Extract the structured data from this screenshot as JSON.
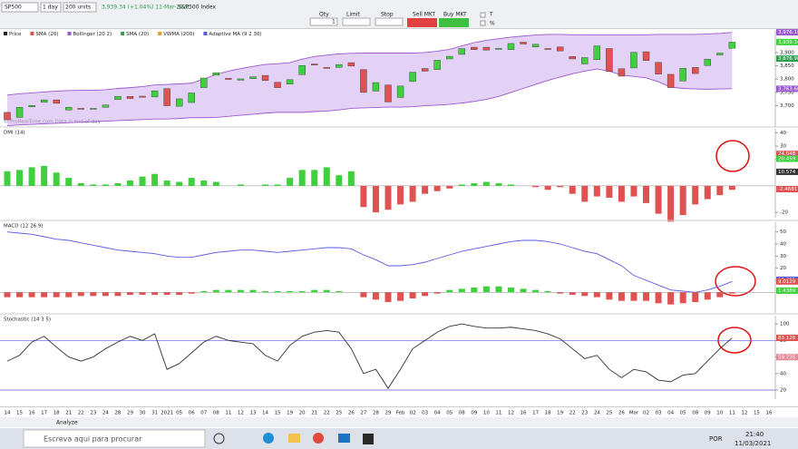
{
  "toolbar": {
    "symbol": "SP500",
    "period": "1 day",
    "units": "200 units",
    "quote": "3,939.34 (+1.04%) 11-Mar-2021",
    "name": "S&P500 Index",
    "qty_label": "Qty",
    "qty": "1",
    "limit": "Limit",
    "stop": "Stop",
    "sell": "Sell MKT",
    "buy": "Buy MKT",
    "t": "T",
    "pct": "%"
  },
  "legend": [
    "Price",
    "SMA (20)",
    "Bollinger (20 2)",
    "SMA (20)",
    "VWMA (200)",
    "Adaptive MA (9 2 30)"
  ],
  "copyright": "© ProRealTime.com  Data is end of day",
  "chart_data": [
    {
      "type": "candlestick",
      "categories": [
        "14",
        "15",
        "16",
        "17",
        "18",
        "21",
        "22",
        "23",
        "24",
        "28",
        "29",
        "30",
        "31",
        "2021",
        "05",
        "06",
        "07",
        "08",
        "11",
        "12",
        "13",
        "14",
        "15",
        "19",
        "20",
        "21",
        "22",
        "25",
        "26",
        "27",
        "28",
        "29",
        "Feb",
        "02",
        "03",
        "04",
        "05",
        "08",
        "09",
        "10",
        "11",
        "12",
        "16",
        "17",
        "18",
        "19",
        "22",
        "23",
        "24",
        "25",
        "26",
        "Mar",
        "02",
        "03",
        "04",
        "05",
        "08",
        "09",
        "10",
        "11",
        "12",
        "15",
        "16"
      ],
      "open": [
        3675,
        3656,
        3696,
        3713,
        3722,
        3684,
        3690,
        3688,
        3694,
        3723,
        3735,
        3736,
        3733,
        3764,
        3698,
        3712,
        3768,
        3815,
        3803,
        3796,
        3802,
        3814,
        3788,
        3781,
        3817,
        3857,
        3844,
        3844,
        3862,
        3836,
        3755,
        3778,
        3731,
        3791,
        3840,
        3836,
        3876,
        3893,
        3920,
        3920,
        3912,
        3911,
        3939,
        3921,
        3915,
        3921,
        3885,
        3857,
        3873,
        3915,
        3839,
        3842,
        3903,
        3863,
        3818,
        3793,
        3844,
        3851,
        3891,
        3916,
        null,
        null,
        null
      ],
      "close": [
        3647,
        3694,
        3701,
        3722,
        3709,
        3694,
        3687,
        3690,
        3703,
        3735,
        3727,
        3732,
        3756,
        3700,
        3726,
        3748,
        3804,
        3824,
        3799,
        3801,
        3809,
        3795,
        3768,
        3798,
        3851,
        3853,
        3841,
        3855,
        3849,
        3750,
        3787,
        3714,
        3774,
        3826,
        3830,
        3871,
        3886,
        3915,
        3911,
        3909,
        3916,
        3934,
        3932,
        3931,
        3913,
        3906,
        3876,
        3881,
        3925,
        3829,
        3811,
        3901,
        3870,
        3819,
        3768,
        3841,
        3821,
        3875,
        3898,
        3939,
        null,
        null,
        null
      ],
      "bollinger_upper": [
        3740,
        3745,
        3748,
        3752,
        3755,
        3757,
        3758,
        3758,
        3760,
        3765,
        3768,
        3772,
        3778,
        3780,
        3782,
        3785,
        3800,
        3818,
        3830,
        3840,
        3848,
        3855,
        3858,
        3862,
        3875,
        3885,
        3890,
        3895,
        3897,
        3898,
        3898,
        3898,
        3898,
        3898,
        3900,
        3905,
        3912,
        3925,
        3937,
        3946,
        3952,
        3958,
        3962,
        3966,
        3968,
        3968,
        3967,
        3967,
        3966,
        3966,
        3966,
        3966,
        3967,
        3968,
        3968,
        3968,
        3968,
        3970,
        3972,
        3976,
        null,
        null,
        null
      ],
      "bollinger_lower": [
        3625,
        3628,
        3630,
        3632,
        3634,
        3636,
        3638,
        3640,
        3642,
        3644,
        3646,
        3648,
        3650,
        3650,
        3652,
        3655,
        3655,
        3656,
        3660,
        3664,
        3668,
        3672,
        3675,
        3675,
        3675,
        3678,
        3680,
        3684,
        3690,
        3692,
        3693,
        3695,
        3695,
        3696,
        3700,
        3702,
        3705,
        3710,
        3716,
        3724,
        3735,
        3750,
        3765,
        3780,
        3795,
        3808,
        3820,
        3830,
        3838,
        3830,
        3815,
        3810,
        3805,
        3790,
        3770,
        3765,
        3763,
        3762,
        3763,
        3764,
        null,
        null,
        null
      ],
      "up_color": "#3fcf3f",
      "down_color": "#e05252",
      "band_color": "#c9a6ee",
      "ylim": [
        3620,
        3985
      ],
      "yticks": [
        {
          "value": 3700,
          "label": "3,700"
        },
        {
          "value": 3750,
          "label": "3,750"
        },
        {
          "value": 3800,
          "label": "3,800"
        },
        {
          "value": 3850,
          "label": "3,850"
        },
        {
          "value": 3900,
          "label": "3,900"
        }
      ],
      "tags": [
        {
          "value": 3976.18,
          "label": "3,976.18",
          "color": "#9b59d0"
        },
        {
          "value": 3939.34,
          "label": "3,939.34",
          "color": "#3fcf3f"
        },
        {
          "value": 3876.98,
          "label": "3,876.98",
          "color": "#2e9e4f"
        },
        {
          "value": 3763.68,
          "label": "3,763.68",
          "color": "#9b59d0"
        }
      ]
    },
    {
      "type": "bar",
      "title": "DMI (14)",
      "values": [
        11,
        12,
        14,
        15,
        10,
        6,
        2,
        1,
        1,
        2,
        4,
        7,
        9,
        4,
        3,
        6,
        4,
        3,
        0,
        1,
        0,
        1,
        1,
        6,
        12,
        12,
        14,
        8,
        11,
        -16,
        -20,
        -18,
        -14,
        -12,
        -6,
        -4,
        -2,
        1,
        2,
        3,
        2,
        1,
        0,
        -1,
        -3,
        -1,
        -6,
        -12,
        -8,
        -9,
        -12,
        -8,
        -13,
        -21,
        -27,
        -22,
        -14,
        -10,
        -7,
        -3,
        null,
        null,
        null
      ],
      "pos_color": "#3fcf3f",
      "neg_color": "#e05252",
      "ylim": [
        -24,
        43
      ],
      "yticks": [
        -20,
        20,
        30,
        40
      ],
      "tags": [
        {
          "value": 24.048,
          "label": "24.048",
          "color": "#e05252"
        },
        {
          "value": 20.459,
          "label": "20.459",
          "color": "#3fcf3f"
        },
        {
          "value": 10.574,
          "label": "10.574",
          "color": "#333"
        },
        {
          "value": -2.4681,
          "label": "-2.4681",
          "color": "#e05252"
        }
      ]
    },
    {
      "type": "bar",
      "title": "MACD (12 26 9)",
      "values": [
        -4,
        -4,
        -4,
        -4,
        -4,
        -4,
        -3,
        -3,
        -3,
        -3,
        -2,
        -2,
        -2,
        -2,
        -2,
        -1,
        1,
        2,
        2,
        2,
        2,
        1,
        1,
        1,
        1,
        2,
        2,
        1,
        0,
        -4,
        -6,
        -8,
        -7,
        -5,
        -3,
        -1,
        2,
        3,
        4,
        5,
        5,
        4,
        3,
        2,
        1,
        -1,
        -2,
        -3,
        -4,
        -6,
        -7,
        -7,
        -7,
        -9,
        -10,
        -9,
        -8,
        -6,
        -4,
        -1,
        null,
        null,
        null
      ],
      "line_values": [
        50,
        49,
        48,
        46,
        44,
        43,
        41,
        39,
        37,
        35,
        34,
        33,
        32,
        30,
        29,
        29,
        31,
        33,
        34,
        35,
        35,
        34,
        33,
        34,
        35,
        36,
        37,
        37,
        36,
        31,
        27,
        22,
        22,
        23,
        25,
        28,
        31,
        34,
        36,
        38,
        40,
        42,
        43,
        43,
        42,
        40,
        37,
        34,
        32,
        27,
        22,
        14,
        10,
        6,
        2,
        1,
        0,
        2,
        5,
        9,
        null,
        null,
        null
      ],
      "line_color": "#5a5ae0",
      "pos_color": "#3fcf3f",
      "neg_color": "#e05252",
      "ylim": [
        -17,
        58
      ],
      "yticks": [
        10,
        20,
        30,
        40,
        50
      ],
      "tags": [
        {
          "value": 10.451,
          "label": "10.451",
          "color": "#5a5ae0"
        },
        {
          "value": 9.0129,
          "label": "9.0129",
          "color": "#e05252"
        },
        {
          "value": 1.4389,
          "label": "1.4389",
          "color": "#3fcf3f"
        }
      ]
    },
    {
      "type": "line",
      "title": "Stochastic (14 3 5)",
      "values": [
        55,
        62,
        78,
        85,
        72,
        60,
        55,
        60,
        70,
        78,
        85,
        80,
        88,
        45,
        52,
        65,
        78,
        85,
        80,
        78,
        76,
        62,
        55,
        74,
        85,
        90,
        92,
        90,
        70,
        40,
        45,
        22,
        45,
        70,
        80,
        90,
        97,
        100,
        97,
        95,
        95,
        96,
        94,
        92,
        88,
        82,
        70,
        58,
        62,
        45,
        35,
        45,
        42,
        32,
        30,
        38,
        40,
        55,
        70,
        83,
        null,
        null,
        null
      ],
      "color": "#333",
      "levels": [
        20,
        80
      ],
      "level_color": "#5a5ae0",
      "ylim": [
        9,
        110
      ],
      "yticks": [
        20,
        40,
        60,
        80,
        100
      ],
      "tags": [
        {
          "value": 83.126,
          "label": "83.126",
          "color": "#e05252"
        },
        {
          "value": 59.735,
          "label": "59.735",
          "color": "#e58a9a"
        }
      ]
    }
  ],
  "bottom": {
    "analyze": "Analyze"
  },
  "taskbar": {
    "search": "Escreva aqui para procurar",
    "lang": "POR",
    "time": "21:40",
    "date": "11/03/2021"
  }
}
